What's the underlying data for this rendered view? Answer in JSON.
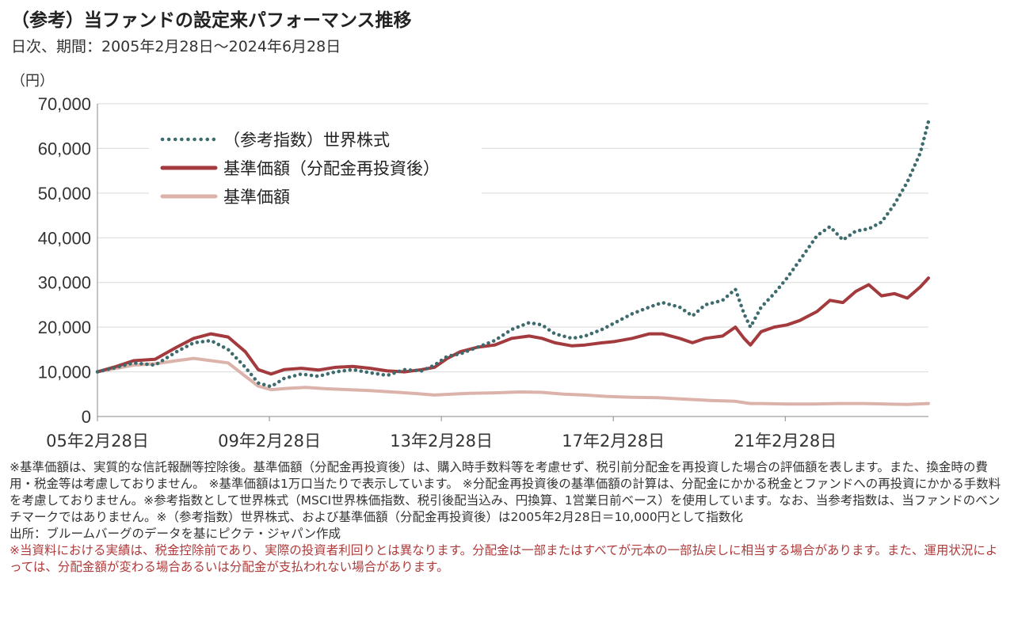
{
  "header": {
    "title": "（参考）当ファンドの設定来パフォーマンス推移",
    "subtitle": "日次、期間：2005年2月28日～2024年6月28日",
    "unit": "（円）"
  },
  "chart_data": {
    "type": "line",
    "ylim": [
      0,
      70000
    ],
    "yticks": [
      "70,000",
      "60,000",
      "50,000",
      "40,000",
      "30,000",
      "20,000",
      "10,000",
      "0"
    ],
    "ytick_values": [
      70000,
      60000,
      50000,
      40000,
      30000,
      20000,
      10000,
      0
    ],
    "xlim": [
      2005.16,
      2024.49
    ],
    "xticks": [
      "05年2月28日",
      "09年2月28日",
      "13年2月28日",
      "17年2月28日",
      "21年2月28日"
    ],
    "xtick_values": [
      2005.16,
      2009.16,
      2013.16,
      2017.16,
      2021.16
    ],
    "grid": true,
    "legend_position": "top-left",
    "series": [
      {
        "name": "（参考指数）世界株式",
        "color": "#3e6b6e",
        "style": "dotted",
        "x": [
          2005.16,
          2005.6,
          2006.0,
          2006.5,
          2007.0,
          2007.4,
          2007.8,
          2008.2,
          2008.6,
          2008.9,
          2009.2,
          2009.5,
          2009.9,
          2010.3,
          2010.7,
          2011.1,
          2011.5,
          2011.9,
          2012.3,
          2012.7,
          2013.0,
          2013.3,
          2013.6,
          2014.0,
          2014.4,
          2014.8,
          2015.2,
          2015.5,
          2015.8,
          2016.2,
          2016.5,
          2016.9,
          2017.2,
          2017.6,
          2018.0,
          2018.3,
          2018.7,
          2019.0,
          2019.3,
          2019.7,
          2020.0,
          2020.2,
          2020.35,
          2020.6,
          2020.9,
          2021.2,
          2021.5,
          2021.9,
          2022.2,
          2022.5,
          2022.8,
          2023.1,
          2023.4,
          2023.7,
          2024.0,
          2024.3,
          2024.49
        ],
        "values": [
          10000,
          11000,
          12000,
          11500,
          14500,
          16500,
          17000,
          15000,
          11000,
          7500,
          6700,
          8500,
          9500,
          9000,
          10000,
          10500,
          9800,
          9200,
          10500,
          10200,
          11500,
          13500,
          14000,
          15500,
          17000,
          19500,
          21000,
          20500,
          18500,
          17500,
          18000,
          19500,
          21000,
          23000,
          24500,
          25500,
          24500,
          22500,
          25000,
          26000,
          28500,
          23000,
          20000,
          24500,
          27500,
          31000,
          35000,
          40500,
          42500,
          39500,
          41500,
          42000,
          43500,
          47500,
          52500,
          59000,
          66000
        ]
      },
      {
        "name": "基準価額（分配金再投資後）",
        "color": "#a33a3e",
        "style": "solid",
        "x": [
          2005.16,
          2005.6,
          2006.0,
          2006.5,
          2007.0,
          2007.4,
          2007.8,
          2008.2,
          2008.6,
          2008.9,
          2009.2,
          2009.5,
          2009.9,
          2010.3,
          2010.7,
          2011.1,
          2011.5,
          2011.9,
          2012.3,
          2012.7,
          2013.0,
          2013.3,
          2013.6,
          2014.0,
          2014.4,
          2014.8,
          2015.2,
          2015.5,
          2015.8,
          2016.2,
          2016.5,
          2016.9,
          2017.2,
          2017.6,
          2018.0,
          2018.3,
          2018.7,
          2019.0,
          2019.3,
          2019.7,
          2020.0,
          2020.2,
          2020.35,
          2020.6,
          2020.9,
          2021.2,
          2021.5,
          2021.9,
          2022.2,
          2022.5,
          2022.8,
          2023.1,
          2023.4,
          2023.7,
          2024.0,
          2024.3,
          2024.49
        ],
        "values": [
          10000,
          11200,
          12500,
          12800,
          15500,
          17500,
          18500,
          17800,
          14500,
          10500,
          9500,
          10500,
          10800,
          10400,
          11000,
          11200,
          10800,
          10200,
          10000,
          10500,
          11000,
          13000,
          14500,
          15500,
          16000,
          17500,
          18000,
          17500,
          16500,
          15800,
          16000,
          16500,
          16800,
          17500,
          18500,
          18500,
          17500,
          16500,
          17500,
          18000,
          20000,
          17500,
          16000,
          19000,
          20000,
          20500,
          21500,
          23500,
          26000,
          25500,
          28000,
          29500,
          27000,
          27500,
          26500,
          29000,
          31000
        ]
      },
      {
        "name": "基準価額",
        "color": "#dcb3ab",
        "style": "solid",
        "x": [
          2005.16,
          2005.6,
          2006.0,
          2006.5,
          2007.0,
          2007.4,
          2007.8,
          2008.2,
          2008.6,
          2008.9,
          2009.2,
          2009.6,
          2010.0,
          2010.5,
          2011.0,
          2011.5,
          2012.0,
          2012.5,
          2013.0,
          2013.4,
          2013.8,
          2014.4,
          2015.0,
          2015.5,
          2016.0,
          2016.5,
          2017.0,
          2017.6,
          2018.2,
          2018.8,
          2019.4,
          2020.0,
          2020.2,
          2020.35,
          2020.6,
          2021.2,
          2021.8,
          2022.4,
          2023.0,
          2023.5,
          2024.0,
          2024.49
        ],
        "values": [
          10000,
          10800,
          11500,
          11800,
          12500,
          13000,
          12500,
          12000,
          9000,
          6800,
          6000,
          6300,
          6500,
          6200,
          6000,
          5800,
          5500,
          5200,
          4800,
          5000,
          5200,
          5300,
          5500,
          5400,
          5000,
          4800,
          4500,
          4300,
          4200,
          3900,
          3600,
          3400,
          3100,
          2900,
          2900,
          2800,
          2800,
          2900,
          2900,
          2800,
          2700,
          2900
        ]
      }
    ]
  },
  "notes": {
    "line1": "※基準価額は、実質的な信託報酬等控除後。基準価額（分配金再投資後）は、購入時手数料等を考慮せず、税引前分配金を再投資した場合の評価額を表します。また、換金時の費用・税金等は考慮しておりません。 ※基準価額は1万口当たりで表示しています。 ※分配金再投資後の基準価額の計算は、分配金にかかる税金とファンドへの再投資にかかる手数料を考慮しておりません。※参考指数として世界株式（MSCI世界株価指数、税引後配当込み、円換算、1営業日前ベース）を使用しています。なお、当参考指数は、当ファンドのベンチマークではありません。※（参考指数）世界株式、および基準価額（分配金再投資後）は2005年2月28日＝10,000円として指数化",
    "source": "出所：ブルームバーグのデータを基にピクテ・ジャパン作成",
    "warning": "※当資料における実績は、税金控除前であり、実際の投資者利回りとは異なります。分配金は一部またはすべてが元本の一部払戻しに相当する場合があります。また、運用状況によっては、分配金額が変わる場合あるいは分配金が支払われない場合があります。"
  }
}
